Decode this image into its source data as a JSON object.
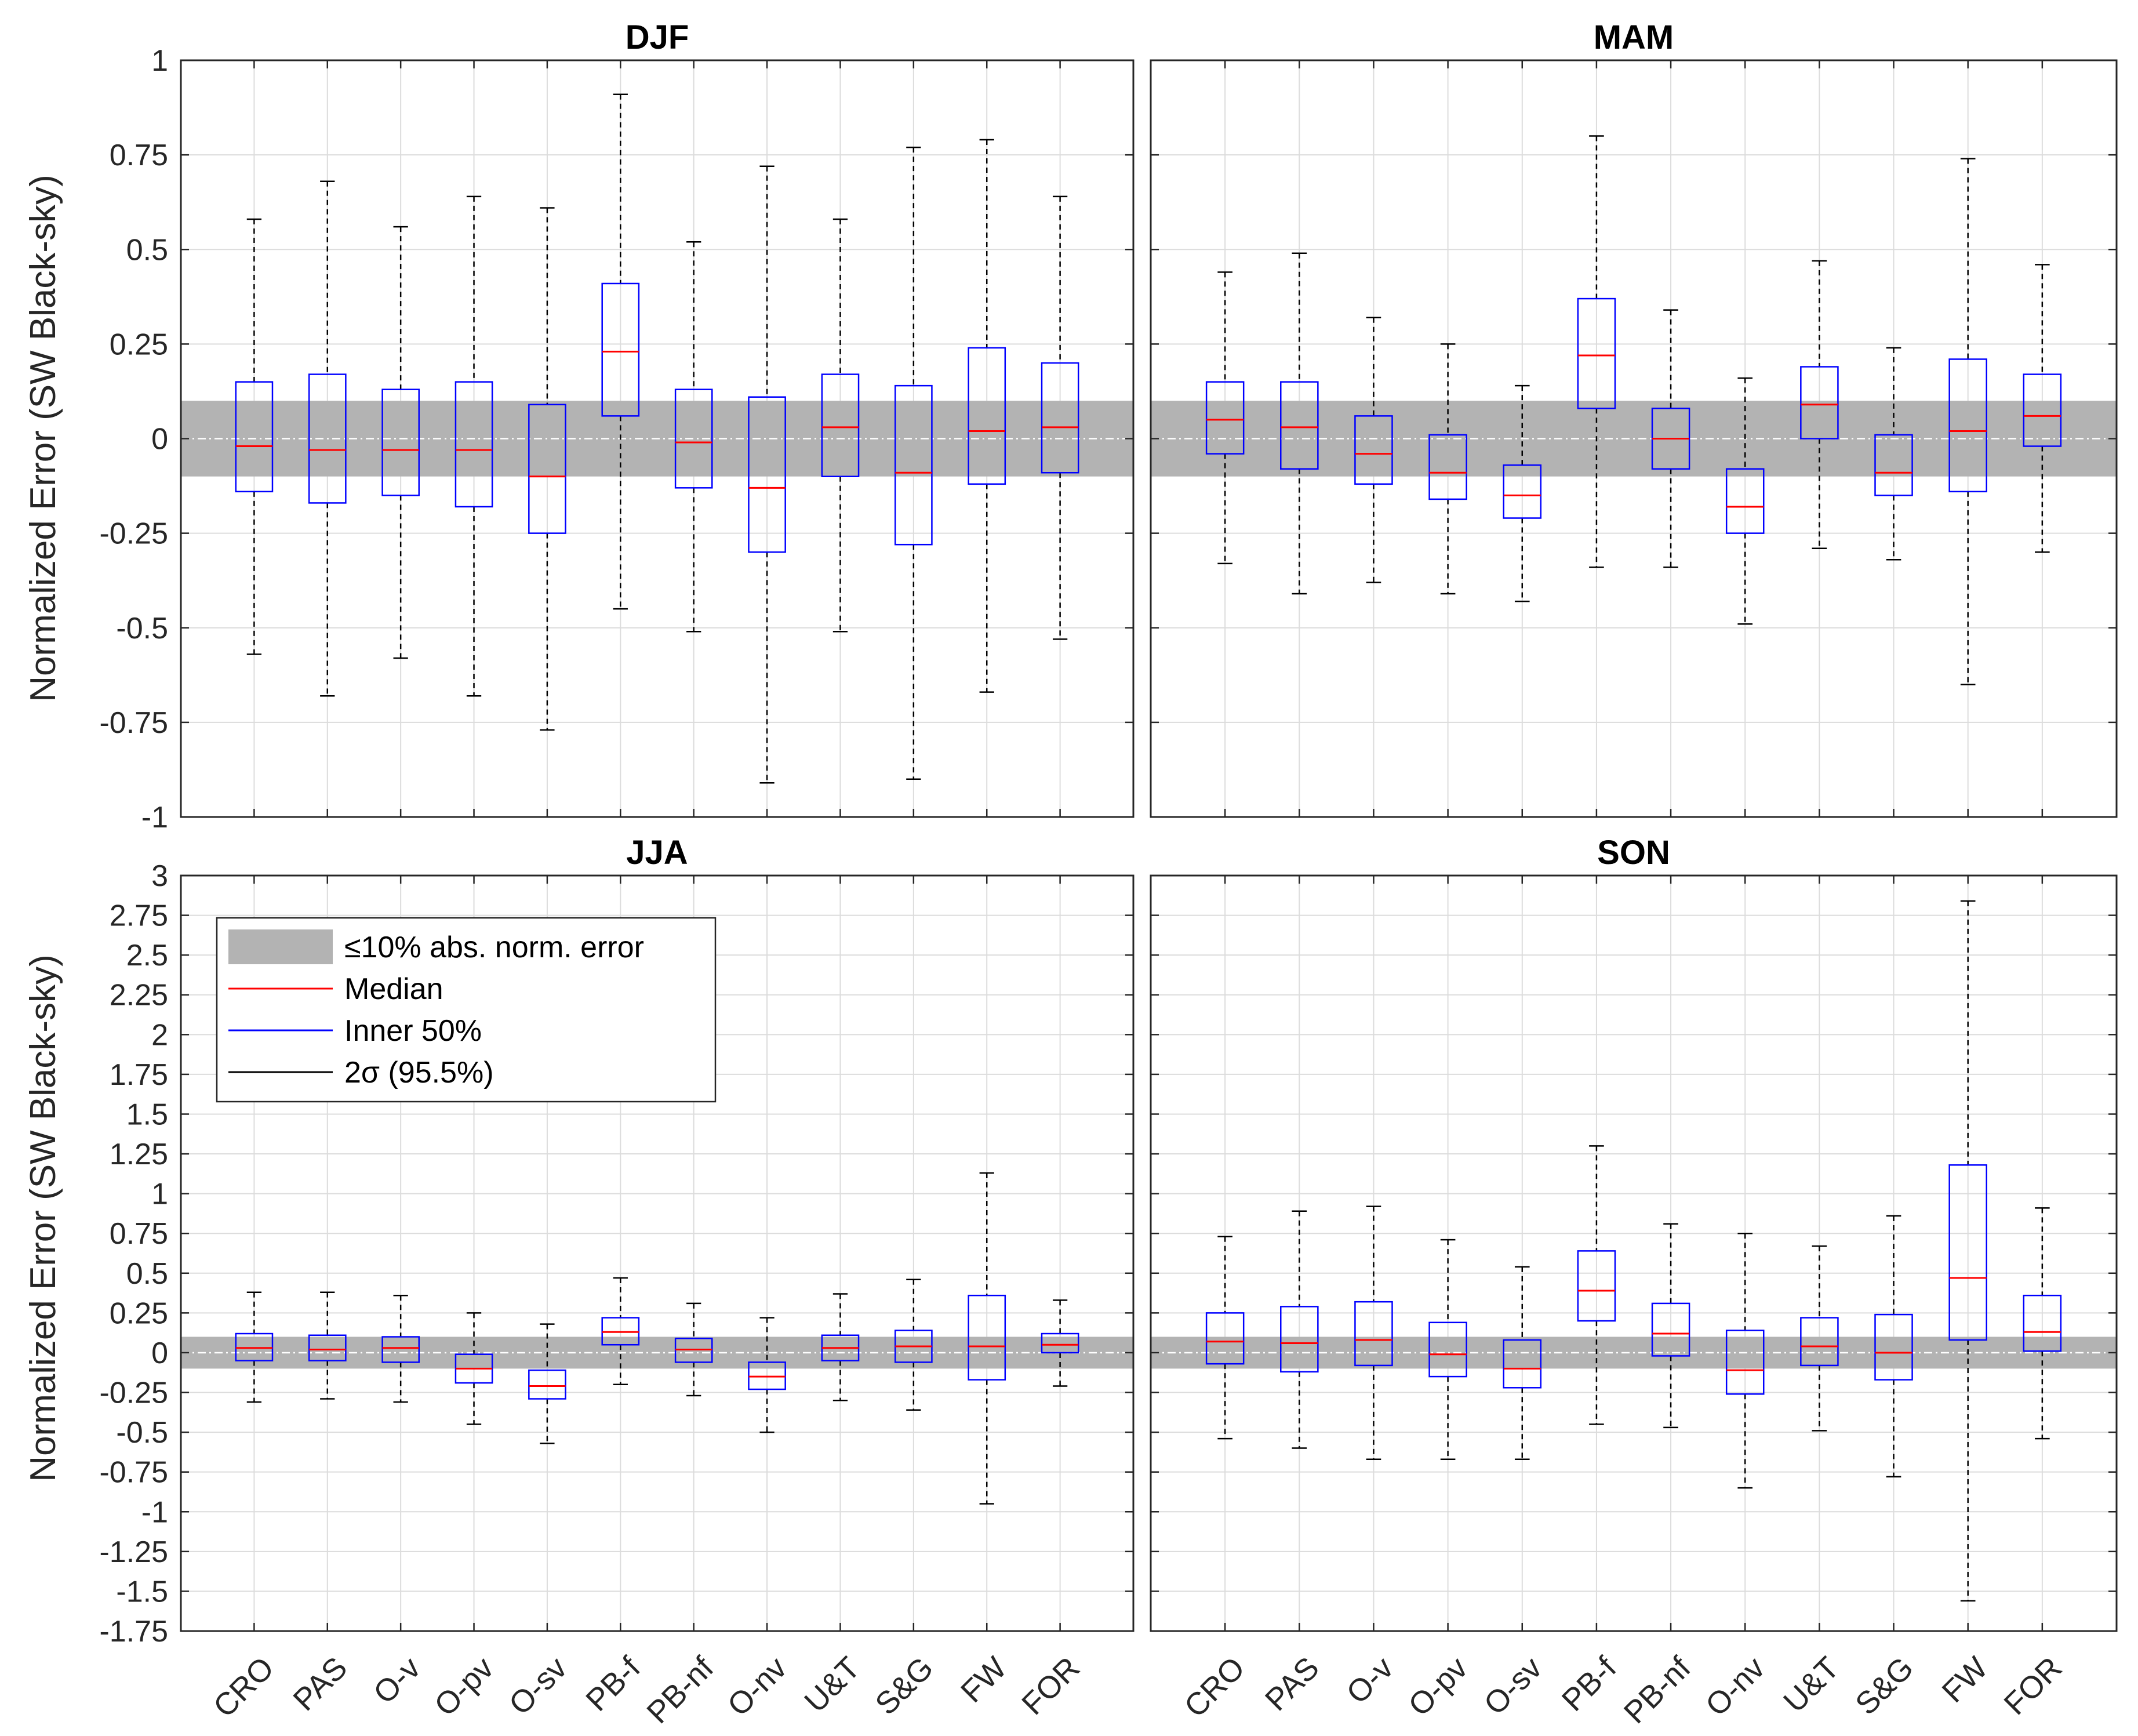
{
  "figure": {
    "ylabel": "Normalized Error (SW Black-sky)",
    "band_color": "#b3b3b3",
    "median_color": "#ff0000",
    "box_color": "#0000ff",
    "whisker_color": "#000000",
    "grid_color": "#dcdcdc"
  },
  "legend": {
    "items": [
      {
        "label": "≤10% abs. norm. error",
        "kind": "band"
      },
      {
        "label": "Median",
        "kind": "median"
      },
      {
        "label": "Inner 50%",
        "kind": "box"
      },
      {
        "label": "2σ (95.5%)",
        "kind": "whisker"
      }
    ]
  },
  "chart_data": [
    {
      "type": "box",
      "title": "DJF",
      "ylabel": "Normalized Error (SW Black-sky)",
      "ylim": [
        -1,
        1
      ],
      "yticks": [
        -1,
        -0.75,
        -0.5,
        -0.25,
        0,
        0.25,
        0.5,
        0.75,
        1
      ],
      "yticklabels": [
        "-1",
        "-0.75",
        "-0.5",
        "-0.25",
        "0",
        "0.25",
        "0.5",
        "0.75",
        "1"
      ],
      "band": [
        -0.1,
        0.1
      ],
      "categories": [
        "CRO",
        "PAS",
        "O-v",
        "O-pv",
        "O-sv",
        "PB-f",
        "PB-nf",
        "O-nv",
        "U&T",
        "S&G",
        "FW",
        "FOR"
      ],
      "boxes": [
        {
          "category": "CRO",
          "lower_whisker": -0.57,
          "q1": -0.14,
          "median": -0.02,
          "q3": 0.15,
          "upper_whisker": 0.58
        },
        {
          "category": "PAS",
          "lower_whisker": -0.68,
          "q1": -0.17,
          "median": -0.03,
          "q3": 0.17,
          "upper_whisker": 0.68
        },
        {
          "category": "O-v",
          "lower_whisker": -0.58,
          "q1": -0.15,
          "median": -0.03,
          "q3": 0.13,
          "upper_whisker": 0.56
        },
        {
          "category": "O-pv",
          "lower_whisker": -0.68,
          "q1": -0.18,
          "median": -0.03,
          "q3": 0.15,
          "upper_whisker": 0.64
        },
        {
          "category": "O-sv",
          "lower_whisker": -0.77,
          "q1": -0.25,
          "median": -0.1,
          "q3": 0.09,
          "upper_whisker": 0.61
        },
        {
          "category": "PB-f",
          "lower_whisker": -0.45,
          "q1": 0.06,
          "median": 0.23,
          "q3": 0.41,
          "upper_whisker": 0.91
        },
        {
          "category": "PB-nf",
          "lower_whisker": -0.51,
          "q1": -0.13,
          "median": -0.01,
          "q3": 0.13,
          "upper_whisker": 0.52
        },
        {
          "category": "O-nv",
          "lower_whisker": -0.91,
          "q1": -0.3,
          "median": -0.13,
          "q3": 0.11,
          "upper_whisker": 0.72
        },
        {
          "category": "U&T",
          "lower_whisker": -0.51,
          "q1": -0.1,
          "median": 0.03,
          "q3": 0.17,
          "upper_whisker": 0.58
        },
        {
          "category": "S&G",
          "lower_whisker": -0.9,
          "q1": -0.28,
          "median": -0.09,
          "q3": 0.14,
          "upper_whisker": 0.77
        },
        {
          "category": "FW",
          "lower_whisker": -0.67,
          "q1": -0.12,
          "median": 0.02,
          "q3": 0.24,
          "upper_whisker": 0.79
        },
        {
          "category": "FOR",
          "lower_whisker": -0.53,
          "q1": -0.09,
          "median": 0.03,
          "q3": 0.2,
          "upper_whisker": 0.64
        }
      ]
    },
    {
      "type": "box",
      "title": "MAM",
      "ylabel": "",
      "ylim": [
        -1,
        1
      ],
      "yticks": [
        -1,
        -0.75,
        -0.5,
        -0.25,
        0,
        0.25,
        0.5,
        0.75,
        1
      ],
      "yticklabels": [],
      "band": [
        -0.1,
        0.1
      ],
      "categories": [
        "CRO",
        "PAS",
        "O-v",
        "O-pv",
        "O-sv",
        "PB-f",
        "PB-nf",
        "O-nv",
        "U&T",
        "S&G",
        "FW",
        "FOR"
      ],
      "boxes": [
        {
          "category": "CRO",
          "lower_whisker": -0.33,
          "q1": -0.04,
          "median": 0.05,
          "q3": 0.15,
          "upper_whisker": 0.44
        },
        {
          "category": "PAS",
          "lower_whisker": -0.41,
          "q1": -0.08,
          "median": 0.03,
          "q3": 0.15,
          "upper_whisker": 0.49
        },
        {
          "category": "O-v",
          "lower_whisker": -0.38,
          "q1": -0.12,
          "median": -0.04,
          "q3": 0.06,
          "upper_whisker": 0.32
        },
        {
          "category": "O-pv",
          "lower_whisker": -0.41,
          "q1": -0.16,
          "median": -0.09,
          "q3": 0.01,
          "upper_whisker": 0.25
        },
        {
          "category": "O-sv",
          "lower_whisker": -0.43,
          "q1": -0.21,
          "median": -0.15,
          "q3": -0.07,
          "upper_whisker": 0.14
        },
        {
          "category": "PB-f",
          "lower_whisker": -0.34,
          "q1": 0.08,
          "median": 0.22,
          "q3": 0.37,
          "upper_whisker": 0.8
        },
        {
          "category": "PB-nf",
          "lower_whisker": -0.34,
          "q1": -0.08,
          "median": 0.0,
          "q3": 0.08,
          "upper_whisker": 0.34
        },
        {
          "category": "O-nv",
          "lower_whisker": -0.49,
          "q1": -0.25,
          "median": -0.18,
          "q3": -0.08,
          "upper_whisker": 0.16
        },
        {
          "category": "U&T",
          "lower_whisker": -0.29,
          "q1": 0.0,
          "median": 0.09,
          "q3": 0.19,
          "upper_whisker": 0.47
        },
        {
          "category": "S&G",
          "lower_whisker": -0.32,
          "q1": -0.15,
          "median": -0.09,
          "q3": 0.01,
          "upper_whisker": 0.24
        },
        {
          "category": "FW",
          "lower_whisker": -0.65,
          "q1": -0.14,
          "median": 0.02,
          "q3": 0.21,
          "upper_whisker": 0.74
        },
        {
          "category": "FOR",
          "lower_whisker": -0.3,
          "q1": -0.02,
          "median": 0.06,
          "q3": 0.17,
          "upper_whisker": 0.46
        }
      ]
    },
    {
      "type": "box",
      "title": "JJA",
      "ylabel": "Normalized Error (SW Black-sky)",
      "ylim": [
        -1.75,
        3
      ],
      "yticks": [
        -1.75,
        -1.5,
        -1.25,
        -1,
        -0.75,
        -0.5,
        -0.25,
        0,
        0.25,
        0.5,
        0.75,
        1,
        1.25,
        1.5,
        1.75,
        2,
        2.25,
        2.5,
        2.75,
        3
      ],
      "yticklabels": [
        "-1.75",
        "-1.5",
        "-1.25",
        "-1",
        "-0.75",
        "-0.5",
        "-0.25",
        "0",
        "0.25",
        "0.5",
        "0.75",
        "1",
        "1.25",
        "1.5",
        "1.75",
        "2",
        "2.25",
        "2.5",
        "2.75",
        "3"
      ],
      "band": [
        -0.1,
        0.1
      ],
      "categories": [
        "CRO",
        "PAS",
        "O-v",
        "O-pv",
        "O-sv",
        "PB-f",
        "PB-nf",
        "O-nv",
        "U&T",
        "S&G",
        "FW",
        "FOR"
      ],
      "boxes": [
        {
          "category": "CRO",
          "lower_whisker": -0.31,
          "q1": -0.05,
          "median": 0.03,
          "q3": 0.12,
          "upper_whisker": 0.38
        },
        {
          "category": "PAS",
          "lower_whisker": -0.29,
          "q1": -0.05,
          "median": 0.02,
          "q3": 0.11,
          "upper_whisker": 0.38
        },
        {
          "category": "O-v",
          "lower_whisker": -0.31,
          "q1": -0.06,
          "median": 0.03,
          "q3": 0.1,
          "upper_whisker": 0.36
        },
        {
          "category": "O-pv",
          "lower_whisker": -0.45,
          "q1": -0.19,
          "median": -0.1,
          "q3": -0.01,
          "upper_whisker": 0.25
        },
        {
          "category": "O-sv",
          "lower_whisker": -0.57,
          "q1": -0.29,
          "median": -0.21,
          "q3": -0.11,
          "upper_whisker": 0.18
        },
        {
          "category": "PB-f",
          "lower_whisker": -0.2,
          "q1": 0.05,
          "median": 0.13,
          "q3": 0.22,
          "upper_whisker": 0.47
        },
        {
          "category": "PB-nf",
          "lower_whisker": -0.27,
          "q1": -0.06,
          "median": 0.02,
          "q3": 0.09,
          "upper_whisker": 0.31
        },
        {
          "category": "O-nv",
          "lower_whisker": -0.5,
          "q1": -0.23,
          "median": -0.15,
          "q3": -0.06,
          "upper_whisker": 0.22
        },
        {
          "category": "U&T",
          "lower_whisker": -0.3,
          "q1": -0.05,
          "median": 0.03,
          "q3": 0.11,
          "upper_whisker": 0.37
        },
        {
          "category": "S&G",
          "lower_whisker": -0.36,
          "q1": -0.06,
          "median": 0.04,
          "q3": 0.14,
          "upper_whisker": 0.46
        },
        {
          "category": "FW",
          "lower_whisker": -0.95,
          "q1": -0.17,
          "median": 0.04,
          "q3": 0.36,
          "upper_whisker": 1.13
        },
        {
          "category": "FOR",
          "lower_whisker": -0.21,
          "q1": 0.0,
          "median": 0.05,
          "q3": 0.12,
          "upper_whisker": 0.33
        }
      ]
    },
    {
      "type": "box",
      "title": "SON",
      "ylabel": "",
      "ylim": [
        -1.75,
        3
      ],
      "yticks": [
        -1.75,
        -1.5,
        -1.25,
        -1,
        -0.75,
        -0.5,
        -0.25,
        0,
        0.25,
        0.5,
        0.75,
        1,
        1.25,
        1.5,
        1.75,
        2,
        2.25,
        2.5,
        2.75,
        3
      ],
      "yticklabels": [],
      "band": [
        -0.1,
        0.1
      ],
      "categories": [
        "CRO",
        "PAS",
        "O-v",
        "O-pv",
        "O-sv",
        "PB-f",
        "PB-nf",
        "O-nv",
        "U&T",
        "S&G",
        "FW",
        "FOR"
      ],
      "boxes": [
        {
          "category": "CRO",
          "lower_whisker": -0.54,
          "q1": -0.07,
          "median": 0.07,
          "q3": 0.25,
          "upper_whisker": 0.73
        },
        {
          "category": "PAS",
          "lower_whisker": -0.6,
          "q1": -0.12,
          "median": 0.06,
          "q3": 0.29,
          "upper_whisker": 0.89
        },
        {
          "category": "O-v",
          "lower_whisker": -0.67,
          "q1": -0.08,
          "median": 0.08,
          "q3": 0.32,
          "upper_whisker": 0.92
        },
        {
          "category": "O-pv",
          "lower_whisker": -0.67,
          "q1": -0.15,
          "median": -0.01,
          "q3": 0.19,
          "upper_whisker": 0.71
        },
        {
          "category": "O-sv",
          "lower_whisker": -0.67,
          "q1": -0.22,
          "median": -0.1,
          "q3": 0.08,
          "upper_whisker": 0.54
        },
        {
          "category": "PB-f",
          "lower_whisker": -0.45,
          "q1": 0.2,
          "median": 0.39,
          "q3": 0.64,
          "upper_whisker": 1.3
        },
        {
          "category": "PB-nf",
          "lower_whisker": -0.47,
          "q1": -0.02,
          "median": 0.12,
          "q3": 0.31,
          "upper_whisker": 0.81
        },
        {
          "category": "O-nv",
          "lower_whisker": -0.85,
          "q1": -0.26,
          "median": -0.11,
          "q3": 0.14,
          "upper_whisker": 0.75
        },
        {
          "category": "U&T",
          "lower_whisker": -0.49,
          "q1": -0.08,
          "median": 0.04,
          "q3": 0.22,
          "upper_whisker": 0.67
        },
        {
          "category": "S&G",
          "lower_whisker": -0.78,
          "q1": -0.17,
          "median": 0.0,
          "q3": 0.24,
          "upper_whisker": 0.86
        },
        {
          "category": "FW",
          "lower_whisker": -1.56,
          "q1": 0.08,
          "median": 0.47,
          "q3": 1.18,
          "upper_whisker": 2.84
        },
        {
          "category": "FOR",
          "lower_whisker": -0.54,
          "q1": 0.01,
          "median": 0.13,
          "q3": 0.36,
          "upper_whisker": 0.91
        }
      ]
    }
  ]
}
